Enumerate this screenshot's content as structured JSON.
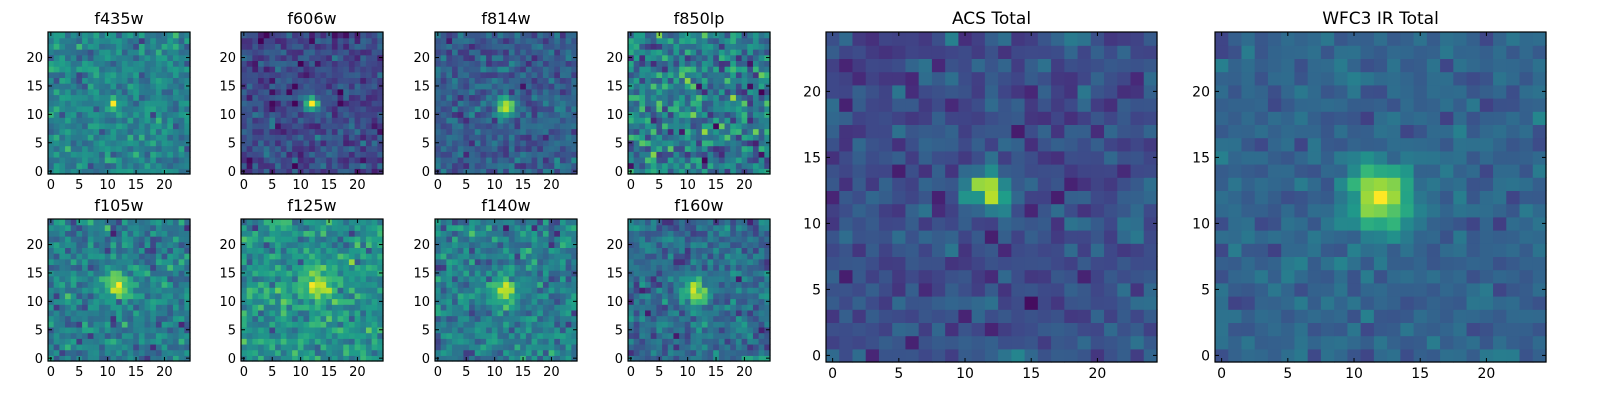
{
  "figure": {
    "colormap": "viridis",
    "colorscale_stops": [
      "#440154",
      "#482878",
      "#3e4989",
      "#31688e",
      "#26828e",
      "#1f9e89",
      "#35b779",
      "#6ece58",
      "#b5de2b",
      "#fde725"
    ]
  },
  "chart_data": [
    {
      "type": "heatmap",
      "title": "f435w",
      "grid_size": 25,
      "xlim": [
        0,
        24
      ],
      "ylim": [
        0,
        24
      ],
      "x_ticks": [
        0,
        5,
        10,
        15,
        20
      ],
      "y_ticks": [
        0,
        5,
        10,
        15,
        20
      ],
      "peak": [
        11,
        12
      ],
      "peak_sigma": 0.7,
      "peak_amplitude": 0.55,
      "background": 0.45,
      "noise": 0.09,
      "seed": 11
    },
    {
      "type": "heatmap",
      "title": "f606w",
      "grid_size": 25,
      "xlim": [
        0,
        24
      ],
      "ylim": [
        0,
        24
      ],
      "x_ticks": [
        0,
        5,
        10,
        15,
        20
      ],
      "y_ticks": [
        0,
        5,
        10,
        15,
        20
      ],
      "peak": [
        12,
        12
      ],
      "peak_sigma": 0.9,
      "peak_amplitude": 0.75,
      "background": 0.22,
      "noise": 0.08,
      "seed": 23
    },
    {
      "type": "heatmap",
      "title": "f814w",
      "grid_size": 25,
      "xlim": [
        0,
        24
      ],
      "ylim": [
        0,
        24
      ],
      "x_ticks": [
        0,
        5,
        10,
        15,
        20
      ],
      "y_ticks": [
        0,
        5,
        10,
        15,
        20
      ],
      "peak": [
        12,
        11.5
      ],
      "peak_sigma": 1.0,
      "peak_amplitude": 0.7,
      "background": 0.3,
      "noise": 0.08,
      "seed": 37
    },
    {
      "type": "heatmap",
      "title": "f850lp",
      "grid_size": 25,
      "xlim": [
        0,
        24
      ],
      "ylim": [
        0,
        24
      ],
      "x_ticks": [
        0,
        5,
        10,
        15,
        20
      ],
      "y_ticks": [
        0,
        5,
        10,
        15,
        20
      ],
      "peak": [
        12,
        12
      ],
      "peak_sigma": 0.7,
      "peak_amplitude": 0.4,
      "background": 0.42,
      "noise": 0.16,
      "seed": 41
    },
    {
      "type": "heatmap",
      "title": "f105w",
      "grid_size": 25,
      "xlim": [
        0,
        24
      ],
      "ylim": [
        0,
        24
      ],
      "x_ticks": [
        0,
        5,
        10,
        15,
        20
      ],
      "y_ticks": [
        0,
        5,
        10,
        15,
        20
      ],
      "peak": [
        12,
        13
      ],
      "peak_sigma": 1.6,
      "peak_amplitude": 0.55,
      "background": 0.42,
      "noise": 0.11,
      "seed": 53
    },
    {
      "type": "heatmap",
      "title": "f125w",
      "grid_size": 25,
      "xlim": [
        0,
        24
      ],
      "ylim": [
        0,
        24
      ],
      "x_ticks": [
        0,
        5,
        10,
        15,
        20
      ],
      "y_ticks": [
        0,
        5,
        10,
        15,
        20
      ],
      "peak": [
        13,
        13
      ],
      "peak_sigma": 1.8,
      "peak_amplitude": 0.4,
      "background": 0.5,
      "noise": 0.1,
      "seed": 67
    },
    {
      "type": "heatmap",
      "title": "f140w",
      "grid_size": 25,
      "xlim": [
        0,
        24
      ],
      "ylim": [
        0,
        24
      ],
      "x_ticks": [
        0,
        5,
        10,
        15,
        20
      ],
      "y_ticks": [
        0,
        5,
        10,
        15,
        20
      ],
      "peak": [
        11.5,
        12
      ],
      "peak_sigma": 1.7,
      "peak_amplitude": 0.5,
      "background": 0.42,
      "noise": 0.11,
      "seed": 71
    },
    {
      "type": "heatmap",
      "title": "f160w",
      "grid_size": 25,
      "xlim": [
        0,
        24
      ],
      "ylim": [
        0,
        24
      ],
      "x_ticks": [
        0,
        5,
        10,
        15,
        20
      ],
      "y_ticks": [
        0,
        5,
        10,
        15,
        20
      ],
      "peak": [
        11.5,
        11.5
      ],
      "peak_sigma": 1.6,
      "peak_amplitude": 0.55,
      "background": 0.35,
      "noise": 0.1,
      "seed": 83
    },
    {
      "type": "heatmap",
      "title": "ACS Total",
      "grid_size": 25,
      "xlim": [
        0,
        24
      ],
      "ylim": [
        0,
        24
      ],
      "x_ticks": [
        0,
        5,
        10,
        15,
        20
      ],
      "y_ticks": [
        0,
        5,
        10,
        15,
        20
      ],
      "peak": [
        11.7,
        12.6
      ],
      "peak_sigma": 0.9,
      "peak_amplitude": 0.75,
      "background": 0.24,
      "noise": 0.07,
      "seed": 97
    },
    {
      "type": "heatmap",
      "title": "WFC3 IR Total",
      "grid_size": 25,
      "xlim": [
        0,
        24
      ],
      "ylim": [
        0,
        24
      ],
      "x_ticks": [
        0,
        5,
        10,
        15,
        20
      ],
      "y_ticks": [
        0,
        5,
        10,
        15,
        20
      ],
      "peak": [
        12,
        12
      ],
      "peak_sigma": 1.7,
      "peak_amplitude": 0.65,
      "background": 0.32,
      "noise": 0.05,
      "seed": 101
    }
  ]
}
